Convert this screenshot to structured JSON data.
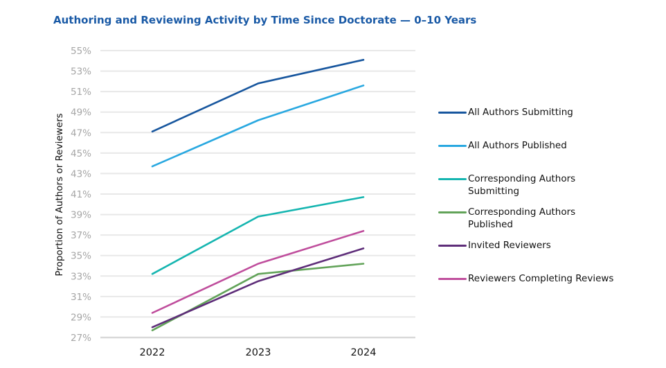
{
  "title": "Authoring and Reviewing Activity by Time Since Doctorate — 0–10 Years",
  "y_axis_label": "Proportion of Authors or Reviewers",
  "y_ticks": [
    "55%",
    "53%",
    "51%",
    "49%",
    "47%",
    "45%",
    "43%",
    "41%",
    "39%",
    "37%",
    "35%",
    "33%",
    "31%",
    "29%",
    "27%"
  ],
  "x_ticks": [
    "2022",
    "2023",
    "2024"
  ],
  "legend": [
    {
      "label": "All Authors Submitting",
      "color": "#17569e"
    },
    {
      "label": "All Authors Published",
      "color": "#29a8e0"
    },
    {
      "label": "Corresponding Authors Submitting",
      "color": "#15b5b0"
    },
    {
      "label": "Corresponding Authors Published",
      "color": "#62a359"
    },
    {
      "label": "Invited Reviewers",
      "color": "#5e2d79"
    },
    {
      "label": "Reviewers Completing Reviews",
      "color": "#bf4d9c"
    }
  ],
  "chart_data": {
    "type": "line",
    "title": "Authoring and Reviewing Activity by Time Since Doctorate — 0–10 Years",
    "xlabel": "",
    "ylabel": "Proportion of Authors or Reviewers",
    "categories": [
      "2022",
      "2023",
      "2024"
    ],
    "ylim": [
      27,
      55
    ],
    "y_tick_step": 2,
    "y_unit": "%",
    "grid": true,
    "legend_position": "right",
    "series": [
      {
        "name": "All Authors Submitting",
        "color": "#17569e",
        "values": [
          47.1,
          51.8,
          54.1
        ]
      },
      {
        "name": "All Authors Published",
        "color": "#29a8e0",
        "values": [
          43.7,
          48.2,
          51.6
        ]
      },
      {
        "name": "Corresponding Authors Submitting",
        "color": "#15b5b0",
        "values": [
          33.2,
          38.8,
          40.7
        ]
      },
      {
        "name": "Corresponding Authors Published",
        "color": "#62a359",
        "values": [
          27.7,
          33.2,
          34.2
        ]
      },
      {
        "name": "Invited Reviewers",
        "color": "#5e2d79",
        "values": [
          28.0,
          32.5,
          35.7
        ]
      },
      {
        "name": "Reviewers Completing Reviews",
        "color": "#bf4d9c",
        "values": [
          29.4,
          34.2,
          37.4
        ]
      }
    ]
  }
}
